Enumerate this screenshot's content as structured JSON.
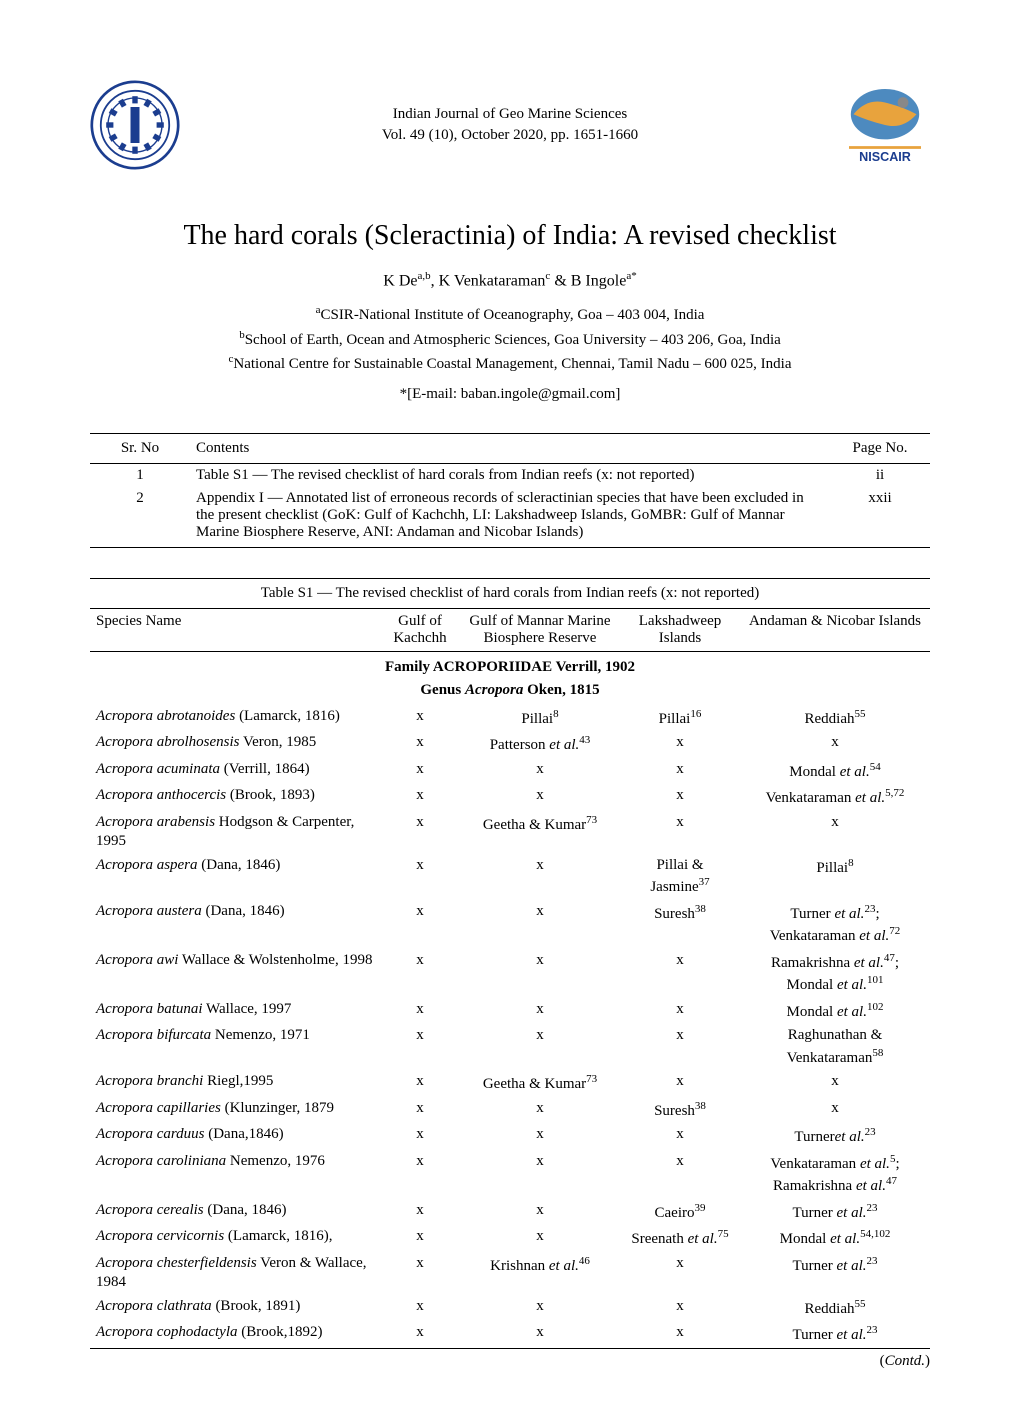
{
  "journal": {
    "name": "Indian Journal of Geo Marine Sciences",
    "vol": "Vol. 49 (10), October 2020, pp. 1651-1660"
  },
  "title": "The hard corals (Scleractinia) of India: A revised checklist",
  "authors_html": "K De<sup>a,b</sup>, K Venkataraman<sup>c</sup> & B Ingole<sup>a*</sup>",
  "affiliations": {
    "a": "<sup>a</sup>CSIR-National Institute of Oceanography, Goa – 403 004, India",
    "b": "<sup>b</sup>School of Earth, Ocean and Atmospheric Sciences, Goa University – 403 206, Goa, India",
    "c": "<sup>c</sup>National Centre for Sustainable Coastal Management, Chennai, Tamil Nadu – 600 025, India"
  },
  "email": "*[E-mail: baban.ingole@gmail.com]",
  "contents": {
    "hdr_sr": "Sr. No",
    "hdr_contents": "Contents",
    "hdr_page": "Page No.",
    "rows": [
      {
        "sr": "1",
        "text": "Table S1 — The revised checklist of hard corals from Indian reefs (x: not reported)",
        "page": "ii"
      },
      {
        "sr": "2",
        "text": "Appendix I — Annotated list of erroneous records of scleractinian species that have been excluded in the present checklist (GoK: Gulf of Kachchh, LI: Lakshadweep Islands, GoMBR: Gulf of Mannar Marine Biosphere Reserve, ANI: Andaman and Nicobar Islands)",
        "page": "xxii"
      }
    ]
  },
  "species_table": {
    "caption": "Table S1 — The revised checklist of hard corals from Indian reefs (x: not reported)",
    "headers": {
      "species": "Species Name",
      "gulf": "Gulf of Kachchh",
      "mannar": "Gulf of Mannar Marine Biosphere Reserve",
      "laksha": "Lakshadweep Islands",
      "andaman": "Andaman & Nicobar Islands"
    },
    "family": "Family ACROPORIIDAE Verrill, 1902",
    "genus_prefix": "Genus ",
    "genus_name": "Acropora",
    "genus_suffix": " Oken, 1815",
    "rows": [
      {
        "name": "Acropora abrotanoides",
        "auth": " (Lamarck, 1816)",
        "c1": "x",
        "c2": "Pillai<sup>8</sup>",
        "c3": "Pillai<sup>16</sup>",
        "c4": "Reddiah<sup>55</sup>"
      },
      {
        "name": "Acropora abrolhosensis",
        "auth": " Veron, 1985",
        "c1": "x",
        "c2": "Patterson <span class='et-al'>et al.</span><sup>43</sup>",
        "c3": "x",
        "c4": "x"
      },
      {
        "name": "Acropora acuminata",
        "auth": " (Verrill, 1864)",
        "c1": "x",
        "c2": "x",
        "c3": "x",
        "c4": "Mondal <span class='et-al'>et al.</span><sup>54</sup>"
      },
      {
        "name": "Acropora anthocercis",
        "auth": " (Brook, 1893)",
        "c1": "x",
        "c2": "x",
        "c3": "x",
        "c4": "Venkataraman <span class='et-al'>et al.</span><sup>5,72</sup>"
      },
      {
        "name": "Acropora arabensis",
        "auth": " Hodgson & Carpenter, 1995",
        "c1": "x",
        "c2": "Geetha & Kumar<sup>73</sup>",
        "c3": "x",
        "c4": "x"
      },
      {
        "name": "Acropora aspera",
        "auth": " (Dana, 1846)",
        "c1": "x",
        "c2": "x",
        "c3": "Pillai & Jasmine<sup>37</sup>",
        "c4": "Pillai<sup>8</sup>"
      },
      {
        "name": "Acropora austera",
        "auth": " (Dana, 1846)",
        "c1": "x",
        "c2": "x",
        "c3": "Suresh<sup>38</sup>",
        "c4": "Turner <span class='et-al'>et al.</span><sup>23</sup>; Venkataraman <span class='et-al'>et al.</span><sup>72</sup>"
      },
      {
        "name": "Acropora awi",
        "auth": " Wallace & Wolstenholme, 1998",
        "c1": "x",
        "c2": "x",
        "c3": "x",
        "c4": "Ramakrishna <span class='et-al'>et al.</span><sup>47</sup>; Mondal <span class='et-al'>et al.</span><sup>101</sup>"
      },
      {
        "name": "Acropora batunai",
        "auth": " Wallace, 1997",
        "c1": "x",
        "c2": "x",
        "c3": "x",
        "c4": "Mondal <span class='et-al'>et al.</span><sup>102</sup>"
      },
      {
        "name": "Acropora bifurcata",
        "auth": " Nemenzo, 1971",
        "c1": "x",
        "c2": "x",
        "c3": "x",
        "c4": "Raghunathan & Venkataraman<sup>58</sup>"
      },
      {
        "name": "Acropora branchi",
        "auth": " Riegl,1995",
        "c1": "x",
        "c2": "Geetha & Kumar<sup>73</sup>",
        "c3": "x",
        "c4": "x"
      },
      {
        "name": "Acropora capillaries",
        "auth": " (Klunzinger, 1879",
        "c1": "x",
        "c2": "x",
        "c3": "Suresh<sup>38</sup>",
        "c4": "x"
      },
      {
        "name": "Acropora carduus",
        "auth": " (Dana,1846)",
        "c1": "x",
        "c2": "x",
        "c3": "x",
        "c4": "Turner<span class='et-al'>et al.</span><sup>23</sup>"
      },
      {
        "name": "Acropora caroliniana",
        "auth": " Nemenzo, 1976",
        "c1": "x",
        "c2": "x",
        "c3": "x",
        "c4": "Venkataraman <span class='et-al'>et al.</span><sup>5</sup>; Ramakrishna <span class='et-al'>et al.</span><sup>47</sup>"
      },
      {
        "name": "Acropora cerealis",
        "auth": " (Dana, 1846)",
        "c1": "x",
        "c2": "x",
        "c3": "Caeiro<sup>39</sup>",
        "c4": "Turner <span class='et-al'>et al.</span><sup>23</sup>"
      },
      {
        "name": "Acropora cervicornis",
        "auth": " (Lamarck, 1816),",
        "c1": "x",
        "c2": "x",
        "c3": "Sreenath <span class='et-al'>et al.</span><sup>75</sup>",
        "c4": "Mondal <span class='et-al'>et al.</span><sup>54,102</sup>"
      },
      {
        "name": "Acropora chesterfieldensis",
        "auth": " Veron & Wallace, 1984",
        "c1": "x",
        "c2": "Krishnan <span class='et-al'>et al.</span><sup>46</sup>",
        "c3": "x",
        "c4": "Turner <span class='et-al'>et al.</span><sup>23</sup>"
      },
      {
        "name": "Acropora clathrata",
        "auth": " (Brook, 1891)",
        "c1": "x",
        "c2": "x",
        "c3": "x",
        "c4": "Reddiah<sup>55</sup>"
      },
      {
        "name": "Acropora cophodactyla",
        "auth": " (Brook,1892)",
        "c1": "x",
        "c2": "x",
        "c3": "x",
        "c4": "Turner <span class='et-al'>et al.</span><sup>23</sup>"
      }
    ],
    "contd": "(Contd.)"
  },
  "logo_colors": {
    "csir_blue": "#1b3d8f",
    "niscair_orange": "#e8a33d",
    "niscair_blue": "#3a7db8"
  }
}
